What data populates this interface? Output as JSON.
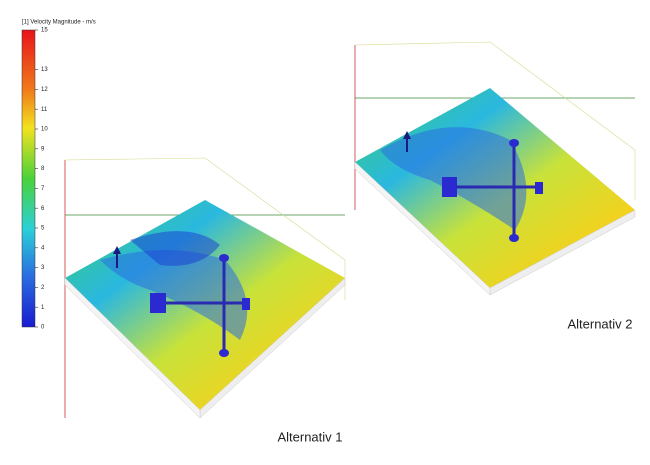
{
  "legend": {
    "title": "[1] Velocity Magnitude - m/s",
    "range": [
      0,
      15
    ],
    "ticks": [
      0,
      1,
      2,
      3,
      4,
      5,
      6,
      7,
      8,
      9,
      10,
      11,
      12,
      13,
      15
    ]
  },
  "views": [
    {
      "label": "Alternativ 1"
    },
    {
      "label": "Alternativ 2"
    }
  ]
}
